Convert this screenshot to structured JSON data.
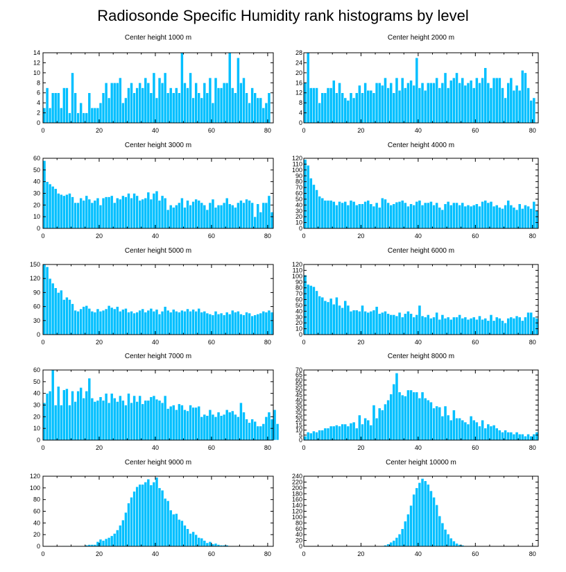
{
  "title": "Radiosonde Specific Humidity rank histograms by level",
  "colors": {
    "bar": "#00BFFF",
    "axis": "#000000"
  },
  "chart_data": [
    {
      "type": "bar",
      "title": "Center height 1000 m",
      "xlim": [
        0,
        82
      ],
      "ylim": [
        0,
        14
      ],
      "xticks": [
        0,
        20,
        40,
        60,
        80
      ],
      "yticks": [
        0,
        2,
        4,
        6,
        8,
        10,
        12,
        14
      ],
      "values": [
        3,
        7,
        3,
        6,
        6,
        6,
        3,
        7,
        7,
        2,
        10,
        6,
        2,
        4,
        2,
        2,
        6,
        3,
        3,
        3,
        4,
        6,
        8,
        5,
        8,
        8,
        8,
        9,
        4,
        5,
        7,
        8,
        6,
        7,
        8,
        7,
        9,
        8,
        6,
        10,
        5,
        9,
        8,
        10,
        6,
        7,
        6,
        7,
        6,
        14,
        8,
        7,
        10,
        5,
        8,
        6,
        5,
        8,
        6,
        9,
        4,
        9,
        7,
        7,
        8,
        8,
        14,
        7,
        6,
        13,
        8,
        9,
        6,
        4,
        7,
        6,
        5,
        5,
        3,
        4,
        6
      ]
    },
    {
      "type": "bar",
      "title": "Center height 2000 m",
      "xlim": [
        0,
        82
      ],
      "ylim": [
        0,
        28
      ],
      "xticks": [
        0,
        20,
        40,
        60,
        80
      ],
      "yticks": [
        0,
        4,
        8,
        12,
        16,
        20,
        24,
        28
      ],
      "values": [
        16,
        28,
        14,
        14,
        14,
        8,
        12,
        12,
        14,
        14,
        17,
        12,
        16,
        12,
        10,
        9,
        12,
        10,
        12,
        15,
        12,
        16,
        13,
        13,
        12,
        16,
        16,
        15,
        18,
        14,
        16,
        12,
        18,
        13,
        18,
        14,
        16,
        17,
        15,
        26,
        14,
        16,
        13,
        16,
        16,
        16,
        18,
        14,
        16,
        20,
        14,
        17,
        18,
        20,
        16,
        18,
        15,
        16,
        17,
        14,
        18,
        16,
        18,
        22,
        16,
        14,
        18,
        18,
        18,
        14,
        10,
        16,
        18,
        13,
        15,
        13,
        21,
        20,
        14,
        9,
        10
      ]
    },
    {
      "type": "bar",
      "title": "Center height 3000 m",
      "xlim": [
        0,
        82
      ],
      "ylim": [
        0,
        60
      ],
      "xticks": [
        0,
        20,
        40,
        60,
        80
      ],
      "yticks": [
        0,
        10,
        20,
        30,
        40,
        50,
        60
      ],
      "values": [
        58,
        40,
        38,
        36,
        34,
        30,
        29,
        28,
        29,
        30,
        27,
        22,
        22,
        26,
        24,
        28,
        25,
        22,
        24,
        26,
        20,
        26,
        27,
        27,
        28,
        22,
        26,
        25,
        28,
        27,
        30,
        26,
        30,
        28,
        24,
        25,
        26,
        31,
        25,
        30,
        32,
        24,
        28,
        26,
        16,
        20,
        18,
        20,
        22,
        26,
        18,
        24,
        20,
        23,
        25,
        24,
        22,
        20,
        16,
        22,
        25,
        18,
        20,
        20,
        22,
        26,
        21,
        20,
        18,
        22,
        24,
        22,
        25,
        24,
        22,
        10,
        21,
        14,
        22,
        22,
        28,
        14
      ]
    },
    {
      "type": "bar",
      "title": "Center height 4000 m",
      "xlim": [
        0,
        82
      ],
      "ylim": [
        0,
        120
      ],
      "xticks": [
        0,
        20,
        40,
        60,
        80
      ],
      "yticks": [
        0,
        10,
        20,
        30,
        40,
        50,
        60,
        70,
        80,
        90,
        100,
        110,
        120
      ],
      "values": [
        118,
        108,
        86,
        75,
        66,
        55,
        52,
        48,
        48,
        48,
        46,
        40,
        46,
        44,
        46,
        40,
        48,
        46,
        40,
        42,
        42,
        46,
        48,
        42,
        38,
        44,
        36,
        52,
        50,
        44,
        40,
        42,
        45,
        46,
        48,
        44,
        38,
        42,
        40,
        46,
        48,
        40,
        44,
        44,
        46,
        40,
        44,
        36,
        32,
        42,
        46,
        40,
        44,
        44,
        40,
        44,
        38,
        40,
        38,
        40,
        42,
        38,
        46,
        48,
        44,
        46,
        38,
        40,
        36,
        34,
        40,
        48,
        40,
        36,
        32,
        42,
        34,
        40,
        38,
        34,
        46,
        30
      ]
    },
    {
      "type": "bar",
      "title": "Center height 5000 m",
      "xlim": [
        0,
        82
      ],
      "ylim": [
        0,
        150
      ],
      "xticks": [
        0,
        20,
        40,
        60,
        80
      ],
      "yticks": [
        0,
        30,
        60,
        90,
        120,
        150
      ],
      "values": [
        150,
        145,
        120,
        110,
        100,
        90,
        95,
        75,
        80,
        75,
        66,
        52,
        50,
        55,
        60,
        62,
        56,
        50,
        48,
        55,
        50,
        52,
        55,
        62,
        58,
        55,
        60,
        50,
        54,
        56,
        48,
        50,
        46,
        48,
        52,
        55,
        48,
        52,
        56,
        50,
        54,
        44,
        50,
        60,
        52,
        48,
        54,
        50,
        48,
        52,
        50,
        55,
        50,
        54,
        50,
        56,
        48,
        50,
        46,
        44,
        42,
        50,
        44,
        46,
        42,
        48,
        44,
        52,
        48,
        50,
        44,
        42,
        48,
        46,
        40,
        42,
        44,
        46,
        50,
        48,
        52,
        48
      ]
    },
    {
      "type": "bar",
      "title": "Center height 6000 m",
      "xlim": [
        0,
        82
      ],
      "ylim": [
        0,
        120
      ],
      "xticks": [
        0,
        20,
        40,
        60,
        80
      ],
      "yticks": [
        0,
        10,
        20,
        30,
        40,
        50,
        60,
        70,
        80,
        90,
        100,
        110,
        120
      ],
      "values": [
        102,
        86,
        84,
        82,
        75,
        66,
        64,
        58,
        56,
        62,
        52,
        64,
        50,
        46,
        58,
        50,
        40,
        42,
        42,
        40,
        50,
        40,
        38,
        40,
        42,
        48,
        36,
        38,
        40,
        36,
        34,
        34,
        32,
        38,
        30,
        36,
        40,
        36,
        30,
        34,
        50,
        32,
        30,
        34,
        28,
        30,
        38,
        26,
        34,
        28,
        30,
        26,
        30,
        30,
        34,
        28,
        30,
        26,
        28,
        30,
        26,
        32,
        26,
        28,
        24,
        34,
        24,
        30,
        28,
        24,
        20,
        28,
        30,
        28,
        32,
        30,
        24,
        30,
        38,
        38,
        30,
        28
      ]
    },
    {
      "type": "bar",
      "title": "Center height 7000 m",
      "xlim": [
        0,
        82
      ],
      "ylim": [
        0,
        60
      ],
      "xticks": [
        0,
        20,
        40,
        60,
        80
      ],
      "yticks": [
        0,
        10,
        20,
        30,
        40,
        50,
        60
      ],
      "values": [
        32,
        40,
        42,
        60,
        30,
        46,
        30,
        43,
        44,
        30,
        42,
        33,
        42,
        45,
        36,
        42,
        53,
        36,
        33,
        34,
        37,
        34,
        40,
        32,
        40,
        36,
        33,
        38,
        34,
        30,
        40,
        32,
        38,
        33,
        38,
        31,
        34,
        34,
        37,
        38,
        35,
        34,
        32,
        38,
        27,
        29,
        30,
        26,
        31,
        30,
        26,
        25,
        30,
        28,
        28,
        29,
        20,
        22,
        21,
        26,
        22,
        20,
        24,
        21,
        22,
        26,
        24,
        25,
        22,
        20,
        32,
        24,
        18,
        15,
        18,
        16,
        12,
        12,
        14,
        20,
        24,
        18,
        26,
        14
      ]
    },
    {
      "type": "bar",
      "title": "Center height 8000 m",
      "xlim": [
        0,
        82
      ],
      "ylim": [
        0,
        70
      ],
      "xticks": [
        0,
        20,
        40,
        60,
        80
      ],
      "yticks": [
        0,
        5,
        10,
        15,
        20,
        25,
        30,
        35,
        40,
        45,
        50,
        55,
        60,
        65,
        70
      ],
      "values": [
        4,
        8,
        7,
        9,
        8,
        10,
        10,
        12,
        12,
        14,
        14,
        15,
        14,
        16,
        16,
        14,
        17,
        18,
        12,
        25,
        16,
        22,
        20,
        15,
        35,
        22,
        32,
        30,
        36,
        40,
        46,
        56,
        67,
        48,
        45,
        44,
        50,
        50,
        48,
        48,
        42,
        48,
        42,
        40,
        38,
        32,
        34,
        33,
        24,
        34,
        25,
        20,
        30,
        22,
        22,
        20,
        18,
        16,
        24,
        20,
        18,
        14,
        20,
        12,
        16,
        14,
        15,
        12,
        10,
        8,
        10,
        8,
        8,
        6,
        8,
        6,
        6,
        4,
        6,
        4,
        6,
        8
      ]
    },
    {
      "type": "bar",
      "title": "Center height 9000 m",
      "xlim": [
        0,
        82
      ],
      "ylim": [
        0,
        120
      ],
      "xticks": [
        0,
        20,
        40,
        60,
        80
      ],
      "yticks": [
        0,
        20,
        40,
        60,
        80,
        100,
        120
      ],
      "values": [
        0,
        0,
        0,
        0,
        0,
        0,
        0,
        1,
        1,
        1,
        0,
        1,
        1,
        1,
        1,
        2,
        3,
        3,
        3,
        8,
        12,
        10,
        13,
        15,
        18,
        22,
        28,
        36,
        45,
        58,
        74,
        84,
        94,
        102,
        106,
        106,
        110,
        115,
        105,
        110,
        118,
        100,
        96,
        82,
        78,
        62,
        55,
        56,
        46,
        44,
        36,
        30,
        22,
        25,
        20,
        15,
        14,
        10,
        6,
        8,
        4,
        5,
        3,
        2,
        2,
        2,
        1,
        1,
        0,
        1,
        0,
        0,
        1,
        0,
        0,
        0,
        0,
        0,
        0,
        0,
        0,
        0
      ]
    },
    {
      "type": "bar",
      "title": "Center height 10000 m",
      "xlim": [
        0,
        82
      ],
      "ylim": [
        0,
        240
      ],
      "xticks": [
        0,
        20,
        40,
        60,
        80
      ],
      "yticks": [
        0,
        20,
        40,
        60,
        80,
        100,
        120,
        140,
        160,
        180,
        200,
        220,
        240
      ],
      "values": [
        0,
        0,
        0,
        0,
        0,
        0,
        0,
        0,
        0,
        0,
        0,
        0,
        0,
        0,
        0,
        0,
        0,
        0,
        0,
        0,
        0,
        0,
        0,
        0,
        0,
        0,
        1,
        2,
        4,
        8,
        14,
        20,
        30,
        42,
        60,
        86,
        110,
        140,
        178,
        200,
        218,
        232,
        224,
        212,
        190,
        168,
        142,
        104,
        80,
        58,
        42,
        28,
        18,
        10,
        6,
        4,
        2,
        1,
        0,
        0,
        0,
        0,
        0,
        0,
        0,
        0,
        1,
        0,
        0,
        0,
        0,
        0,
        0,
        0,
        0,
        0,
        0,
        0,
        0,
        0,
        0,
        0
      ]
    }
  ]
}
